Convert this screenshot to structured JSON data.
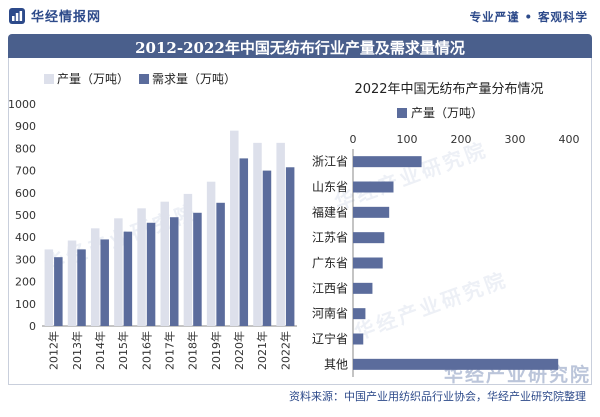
{
  "header": {
    "logo_text": "华经情报网",
    "slogan": "专业严谨 • 客观科学",
    "title": "2012-2022年中国无纺布行业产量及需求量情况"
  },
  "footer": {
    "source": "资料来源：中国产业用纺织品行业协会，华经产业研究院整理"
  },
  "watermark": {
    "text": "华经产业研究院"
  },
  "colors": {
    "production": "#dde0eb",
    "demand": "#5b6c9c",
    "title_bar": "#4a5f8c",
    "brand": "#2d4a8a"
  },
  "chart_data": [
    {
      "type": "bar",
      "title": "",
      "categories": [
        "2012年",
        "2013年",
        "2014年",
        "2015年",
        "2016年",
        "2017年",
        "2018年",
        "2019年",
        "2020年",
        "2021年",
        "2022年"
      ],
      "series": [
        {
          "name": "产量（万吨）",
          "values": [
            345,
            385,
            440,
            485,
            530,
            560,
            595,
            650,
            880,
            825,
            825
          ]
        },
        {
          "name": "需求量（万吨）",
          "values": [
            310,
            345,
            390,
            425,
            465,
            490,
            510,
            555,
            755,
            700,
            715
          ]
        }
      ],
      "y_ticks": [
        0,
        100,
        200,
        300,
        400,
        500,
        600,
        700,
        800,
        900,
        1000
      ],
      "ylim": [
        0,
        1000
      ],
      "legend": "top-left"
    },
    {
      "type": "bar",
      "orientation": "horizontal",
      "title": "2022年中国无纺布产量分布情况",
      "categories": [
        "浙江省",
        "山东省",
        "福建省",
        "江苏省",
        "广东省",
        "江西省",
        "河南省",
        "辽宁省",
        "其他"
      ],
      "series": [
        {
          "name": "产量（万吨）",
          "values": [
            127,
            75,
            67,
            58,
            55,
            36,
            23,
            19,
            380
          ]
        }
      ],
      "x_ticks": [
        0,
        100,
        200,
        300,
        400
      ],
      "xlim": [
        0,
        400
      ],
      "legend": "top"
    }
  ]
}
